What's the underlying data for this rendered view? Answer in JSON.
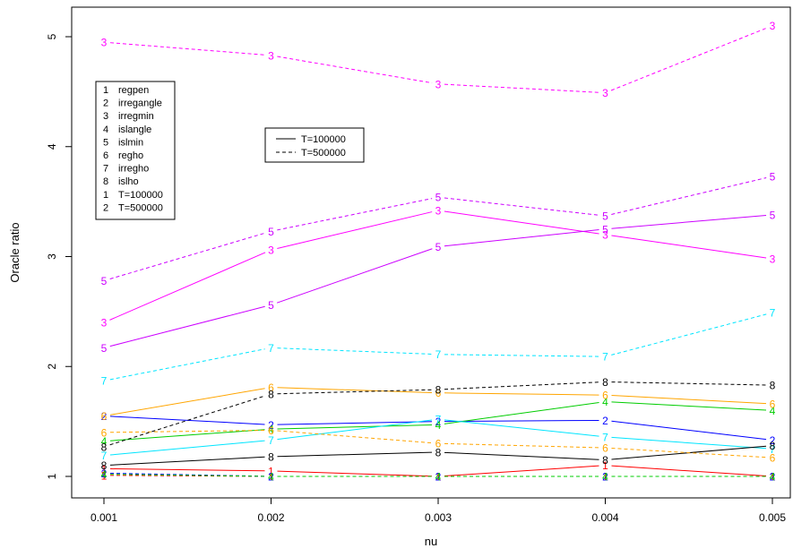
{
  "chart_data": {
    "type": "line",
    "xlabel": "nu",
    "ylabel": "Oracle ratio",
    "x": [
      0.001,
      0.002,
      0.003,
      0.004,
      0.005
    ],
    "x_tick_labels": [
      "0.001",
      "0.002",
      "0.003",
      "0.004",
      "0.005"
    ],
    "y_ticks": [
      1,
      2,
      3,
      4,
      5
    ],
    "y_tick_labels": [
      "1",
      "2",
      "3",
      "4",
      "5"
    ],
    "xlim": [
      0.001,
      0.005
    ],
    "ylim": [
      1,
      5.15
    ],
    "grid": false,
    "methods": [
      {
        "symbol": "1",
        "name": "regpen",
        "color": "#ff0000"
      },
      {
        "symbol": "2",
        "name": "irregangle",
        "color": "#0000ff"
      },
      {
        "symbol": "3",
        "name": "irregmin",
        "color": "#ff00ff"
      },
      {
        "symbol": "4",
        "name": "islangle",
        "color": "#00cc00"
      },
      {
        "symbol": "5",
        "name": "islmin",
        "color": "#cc00ff"
      },
      {
        "symbol": "6",
        "name": "regho",
        "color": "#ffa500"
      },
      {
        "symbol": "7",
        "name": "irregho",
        "color": "#00e5ff"
      },
      {
        "symbol": "8",
        "name": "islho",
        "color": "#000000"
      }
    ],
    "series": [
      {
        "method": "regpen",
        "T": "T=100000",
        "values": [
          1.07,
          1.05,
          1.0,
          1.1,
          1.0
        ]
      },
      {
        "method": "irregangle",
        "T": "T=100000",
        "values": [
          1.55,
          1.47,
          1.5,
          1.51,
          1.33
        ]
      },
      {
        "method": "irregmin",
        "T": "T=100000",
        "values": [
          2.4,
          3.06,
          3.42,
          3.2,
          2.98
        ]
      },
      {
        "method": "islangle",
        "T": "T=100000",
        "values": [
          1.32,
          1.43,
          1.47,
          1.68,
          1.6
        ]
      },
      {
        "method": "islmin",
        "T": "T=100000",
        "values": [
          2.17,
          2.56,
          3.09,
          3.25,
          3.38
        ]
      },
      {
        "method": "regho",
        "T": "T=100000",
        "values": [
          1.55,
          1.81,
          1.76,
          1.74,
          1.66
        ]
      },
      {
        "method": "irregho",
        "T": "T=100000",
        "values": [
          1.19,
          1.33,
          1.52,
          1.36,
          1.25
        ]
      },
      {
        "method": "islho",
        "T": "T=100000",
        "values": [
          1.1,
          1.18,
          1.22,
          1.15,
          1.28
        ]
      },
      {
        "method": "regpen",
        "T": "T=500000",
        "values": [
          1.01,
          1.0,
          1.0,
          1.0,
          1.0
        ]
      },
      {
        "method": "irregangle",
        "T": "T=500000",
        "values": [
          1.03,
          1.0,
          1.0,
          1.0,
          1.0
        ]
      },
      {
        "method": "irregmin",
        "T": "T=500000",
        "values": [
          4.95,
          4.83,
          4.57,
          4.49,
          5.1
        ]
      },
      {
        "method": "islangle",
        "T": "T=500000",
        "values": [
          1.02,
          1.0,
          1.0,
          1.0,
          1.0
        ]
      },
      {
        "method": "islmin",
        "T": "T=500000",
        "values": [
          2.78,
          3.23,
          3.54,
          3.37,
          3.73
        ]
      },
      {
        "method": "regho",
        "T": "T=500000",
        "values": [
          1.4,
          1.42,
          1.3,
          1.26,
          1.17
        ]
      },
      {
        "method": "irregho",
        "T": "T=500000",
        "values": [
          1.87,
          2.17,
          2.11,
          2.09,
          2.49
        ]
      },
      {
        "method": "islho",
        "T": "T=500000",
        "values": [
          1.27,
          1.75,
          1.79,
          1.86,
          1.83
        ]
      }
    ],
    "legend_methods": {
      "placement": "top-left",
      "entries": [
        {
          "symbol": "1",
          "label": "regpen",
          "color": "#ff0000"
        },
        {
          "symbol": "2",
          "label": "irregangle",
          "color": "#0000ff"
        },
        {
          "symbol": "3",
          "label": "irregmin",
          "color": "#ff00ff"
        },
        {
          "symbol": "4",
          "label": "islangle",
          "color": "#00cc00"
        },
        {
          "symbol": "5",
          "label": "islmin",
          "color": "#cc00ff"
        },
        {
          "symbol": "6",
          "label": "regho",
          "color": "#ffa500"
        },
        {
          "symbol": "7",
          "label": "irregho",
          "color": "#00e5ff"
        },
        {
          "symbol": "8",
          "label": "islho",
          "color": "#000000"
        },
        {
          "symbol": "1",
          "label": "T=100000",
          "color": "#ff0000"
        },
        {
          "symbol": "2",
          "label": "T=500000",
          "color": "#0000ff"
        }
      ]
    },
    "legend_linetype": {
      "placement": "top-center",
      "entries": [
        {
          "label": "T=100000",
          "linestyle": "solid"
        },
        {
          "label": "T=500000",
          "linestyle": "dashed"
        }
      ]
    }
  }
}
